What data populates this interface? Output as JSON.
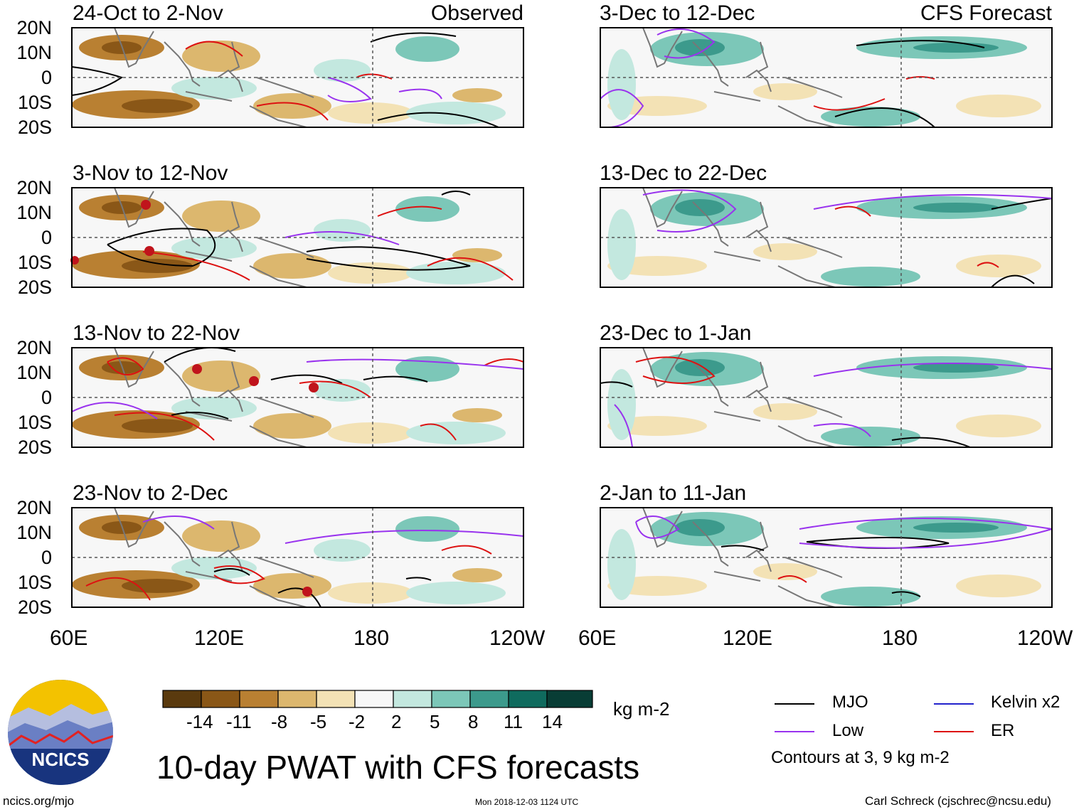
{
  "panels": [
    {
      "title": "24-Oct to 2-Nov",
      "tag": "Observed"
    },
    {
      "title": "3-Dec to 12-Dec",
      "tag": "CFS Forecast"
    },
    {
      "title": "3-Nov to 12-Nov",
      "tag": ""
    },
    {
      "title": "13-Dec to 22-Dec",
      "tag": ""
    },
    {
      "title": "13-Nov to 22-Nov",
      "tag": ""
    },
    {
      "title": "23-Dec to 1-Jan",
      "tag": ""
    },
    {
      "title": "23-Nov to 2-Dec",
      "tag": ""
    },
    {
      "title": "2-Jan to 11-Jan",
      "tag": ""
    }
  ],
  "lat_labels": [
    "20N",
    "10N",
    "0",
    "10S",
    "20S"
  ],
  "lon_labels": [
    "60E",
    "120E",
    "180",
    "120W"
  ],
  "colorbar": {
    "unit": "kg m-2",
    "ticks": [
      "-14",
      "-11",
      "-8",
      "-5",
      "-2",
      "2",
      "5",
      "8",
      "11",
      "14"
    ],
    "colors": [
      "#5a3a0e",
      "#8a5717",
      "#b98032",
      "#dcb76e",
      "#f3e2b5",
      "#f7f7f7",
      "#c3e8df",
      "#7cc7b8",
      "#3c9a8c",
      "#0f6b5e",
      "#083d35"
    ]
  },
  "legend": {
    "items": [
      {
        "label": "MJO",
        "color": "#000000"
      },
      {
        "label": "Kelvin x2",
        "color": "#2222cc"
      },
      {
        "label": "Low",
        "color": "#9933ee"
      },
      {
        "label": "ER",
        "color": "#dd1111"
      }
    ],
    "note": "Contours at 3, 9 kg m-2"
  },
  "title": "10-day PWAT with CFS forecasts",
  "logo": {
    "text": "NCICS"
  },
  "footer": {
    "url": "ncics.org/mjo",
    "timestamp": "Mon 2018-12-03 1124 UTC",
    "credit": "Carl Schreck (cjschrec@ncsu.edu)"
  }
}
